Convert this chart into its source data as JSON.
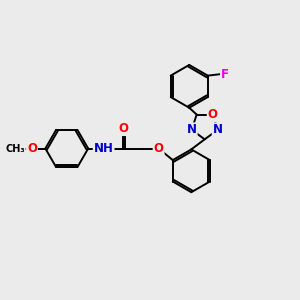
{
  "bg_color": "#ebebeb",
  "bond_color": "#000000",
  "bond_width": 1.4,
  "atom_colors": {
    "O": "#ff0000",
    "N": "#0000cc",
    "F": "#ee00ee",
    "C": "#000000"
  },
  "font_size": 8.5,
  "fig_size": [
    3.0,
    3.0
  ],
  "dpi": 100
}
